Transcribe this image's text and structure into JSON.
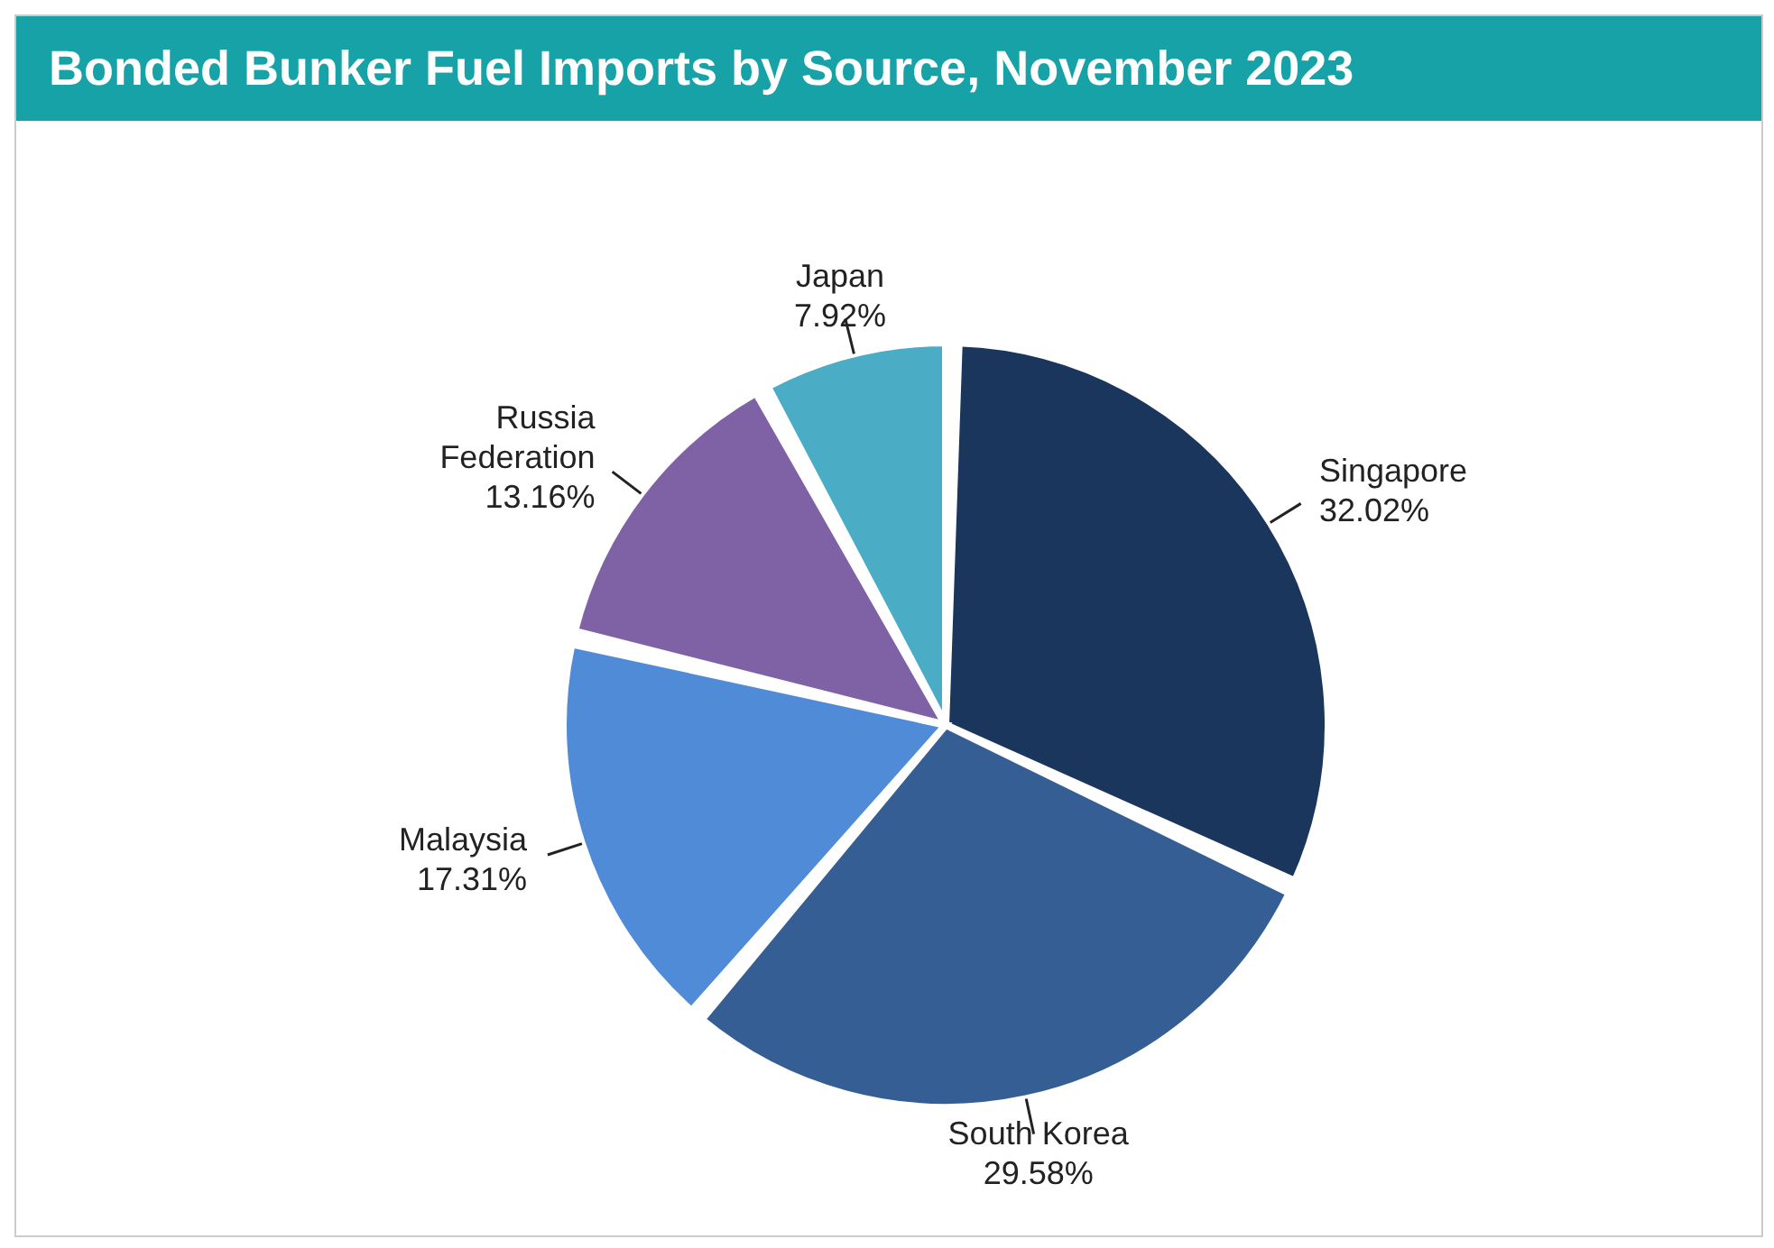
{
  "chart_data": {
    "type": "pie",
    "title": "Bonded Bunker Fuel Imports by Source, November 2023",
    "categories": [
      "Singapore",
      "South Korea",
      "Malaysia",
      "Russia Federation",
      "Japan"
    ],
    "values": [
      32.02,
      29.58,
      17.31,
      13.16,
      7.92
    ],
    "value_labels": [
      "32.02%",
      "29.58%",
      "17.31%",
      "13.16%",
      "7.92%"
    ],
    "colors": [
      "#1b365d",
      "#355f94",
      "#4f8bd6",
      "#7f62a6",
      "#4bacc6"
    ],
    "legend": false
  }
}
